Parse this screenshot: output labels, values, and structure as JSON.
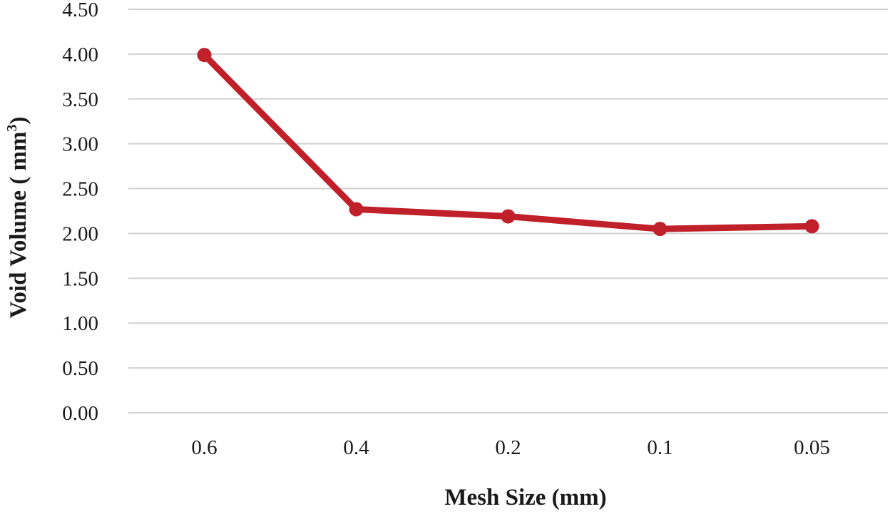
{
  "chart_data": {
    "type": "line",
    "categories": [
      "0.6",
      "0.4",
      "0.2",
      "0.1",
      "0.05"
    ],
    "series": [
      {
        "values": [
          3.99,
          2.27,
          2.19,
          2.05,
          2.08
        ],
        "color": "#c0202a"
      }
    ],
    "xlabel": "Mesh Size (mm)",
    "ylabel": {
      "prefix": "Void Volume ( mm",
      "superscript": "3",
      "suffix": ")"
    },
    "ylim": [
      0,
      4.5
    ],
    "yticks": [
      "0.00",
      "0.50",
      "1.00",
      "1.50",
      "2.00",
      "2.50",
      "3.00",
      "3.50",
      "4.00",
      "4.50"
    ],
    "grid": true,
    "legend": "none",
    "gridline_color": "#d0d0d0"
  }
}
